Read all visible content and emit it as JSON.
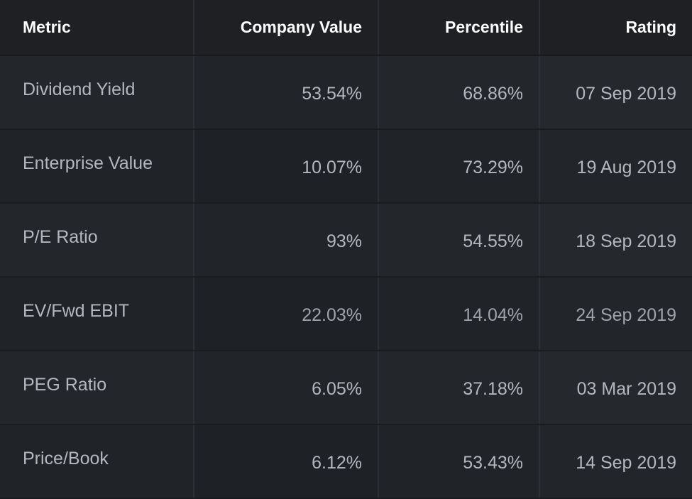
{
  "table": {
    "headers": [
      "Metric",
      "Company Value",
      "Percentile",
      "Rating"
    ],
    "rows": [
      {
        "metric": "Dividend Yield",
        "company_value": "53.54%",
        "percentile": "68.86%",
        "rating": "07 Sep 2019"
      },
      {
        "metric": "Enterprise Value",
        "company_value": "10.07%",
        "percentile": "73.29%",
        "rating": "19 Aug 2019"
      },
      {
        "metric": "P/E Ratio",
        "company_value": "93%",
        "percentile": "54.55%",
        "rating": "18 Sep 2019"
      },
      {
        "metric": "EV/Fwd EBIT",
        "company_value": "22.03%",
        "percentile": "14.04%",
        "rating": "24 Sep 2019"
      },
      {
        "metric": "PEG Ratio",
        "company_value": "6.05%",
        "percentile": "37.18%",
        "rating": "03 Mar 2019"
      },
      {
        "metric": "Price/Book",
        "company_value": "6.12%",
        "percentile": "53.43%",
        "rating": "14 Sep 2019"
      }
    ]
  },
  "colors": {
    "background": "#1b1d21",
    "header_text": "#ffffff",
    "cell_text": "#b4b7bd"
  }
}
